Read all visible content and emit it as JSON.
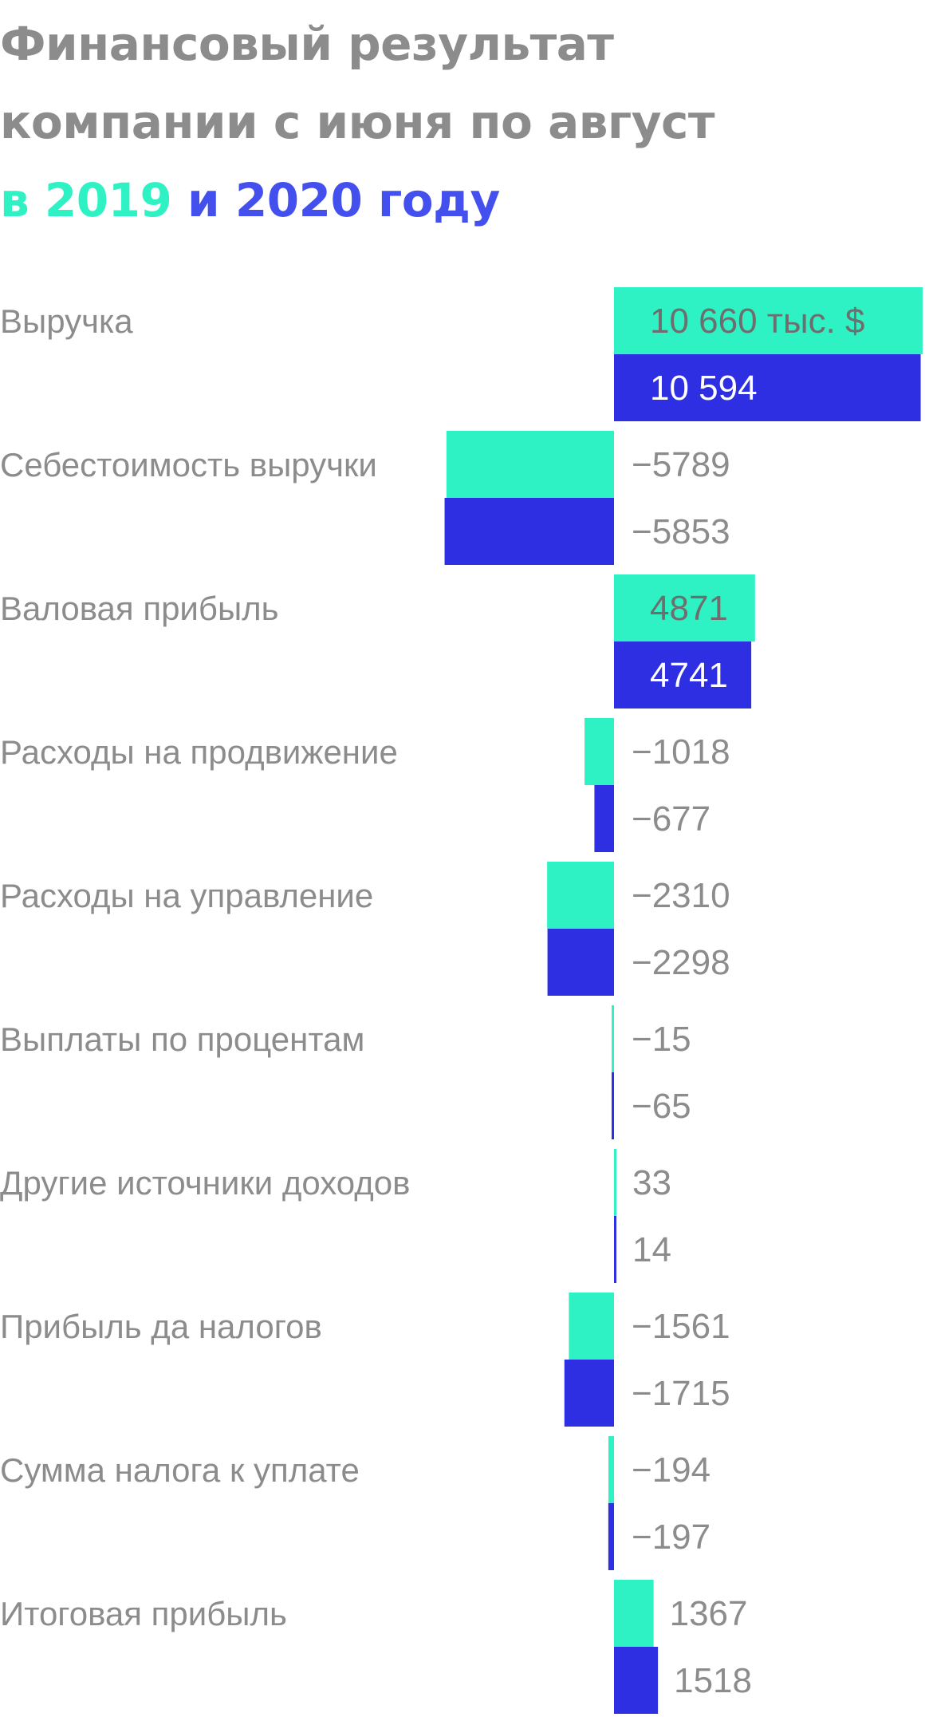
{
  "title": {
    "line1": "Финансовый результат",
    "line2": "компании с июня по август",
    "line3_prefix": "в ",
    "line3_y2019": "2019",
    "line3_and": " и ",
    "line3_y2020": "2020 году"
  },
  "colors": {
    "series_2019": "#2ef2c4",
    "series_2020": "#2e2ee3",
    "text": "#8c8c8c",
    "title_2020": "#4350ee"
  },
  "chart_data": {
    "type": "bar",
    "orientation": "horizontal",
    "unit": "тыс. $",
    "categories": [
      "Выручка",
      "Себестоимость выручки",
      "Валовая прибыль",
      "Расходы на продвижение",
      "Расходы на управление",
      "Выплаты по процентам",
      "Другие источники доходов",
      "Прибыль да налогов",
      "Сумма налога к уплате",
      "Итоговая прибыль"
    ],
    "series": [
      {
        "name": "2019",
        "values": [
          10660,
          -5789,
          4871,
          -1018,
          -2310,
          -15,
          33,
          -1561,
          -194,
          1367
        ],
        "labels": [
          "10 660 тыс. $",
          "−5789",
          "4871",
          "−1018",
          "−2310",
          "−15",
          "33",
          "−1561",
          "−194",
          "1367"
        ]
      },
      {
        "name": "2020",
        "values": [
          10594,
          -5853,
          4741,
          -677,
          -2298,
          -65,
          14,
          -1715,
          -197,
          1518
        ],
        "labels": [
          "10 594",
          "−5853",
          "4741",
          "−677",
          "−2298",
          "−65",
          "14",
          "−1715",
          "−197",
          "1518"
        ]
      }
    ],
    "grid": false,
    "legend": "title"
  }
}
